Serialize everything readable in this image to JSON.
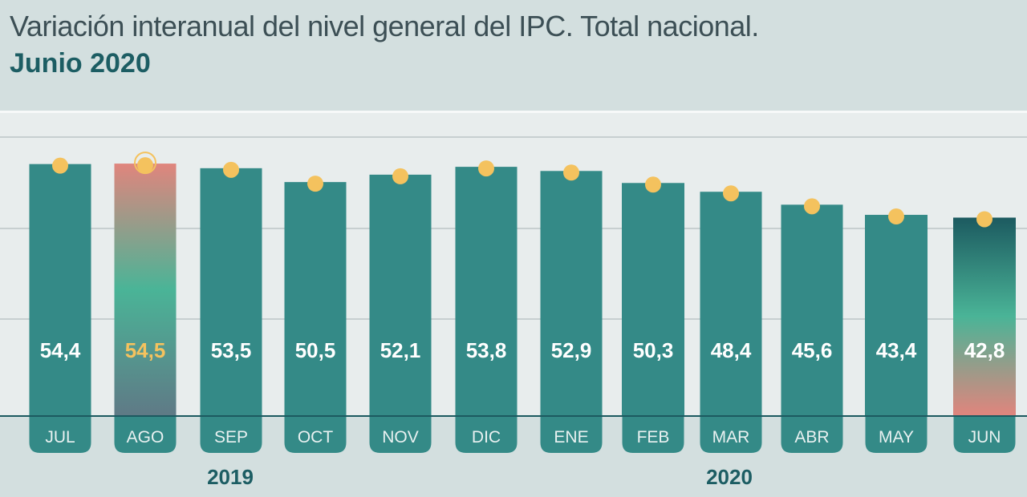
{
  "title": "Variación interanual del nivel general del IPC. Total nacional.",
  "subtitle": "Junio 2020",
  "chart_data": {
    "type": "bar",
    "title": "Variación interanual del nivel general del IPC. Total nacional.",
    "subtitle": "Junio 2020",
    "categories": [
      "JUL",
      "AGO",
      "SEP",
      "OCT",
      "NOV",
      "DIC",
      "ENE",
      "FEB",
      "MAR",
      "ABR",
      "MAY",
      "JUN"
    ],
    "values": [
      54.4,
      54.5,
      53.5,
      50.5,
      52.1,
      53.8,
      52.9,
      50.3,
      48.4,
      45.6,
      43.4,
      42.8
    ],
    "value_labels": [
      "54,4",
      "54,5",
      "53,5",
      "50,5",
      "52,1",
      "53,8",
      "52,9",
      "50,3",
      "48,4",
      "45,6",
      "43,4",
      "42,8"
    ],
    "year_labels": [
      "2019",
      "2020"
    ],
    "highlight": {
      "max_index": 1,
      "max_color": "#f4c25e",
      "current_index": 11
    },
    "colors": {
      "bar": "#348a87",
      "marker": "#f4c25e",
      "label": "#ffffff",
      "tab": "#348a87",
      "gradient_red": "#e0857d",
      "gradient_green": "#4ab497",
      "gradient_dark": "#1c5a60"
    },
    "grid": true
  }
}
